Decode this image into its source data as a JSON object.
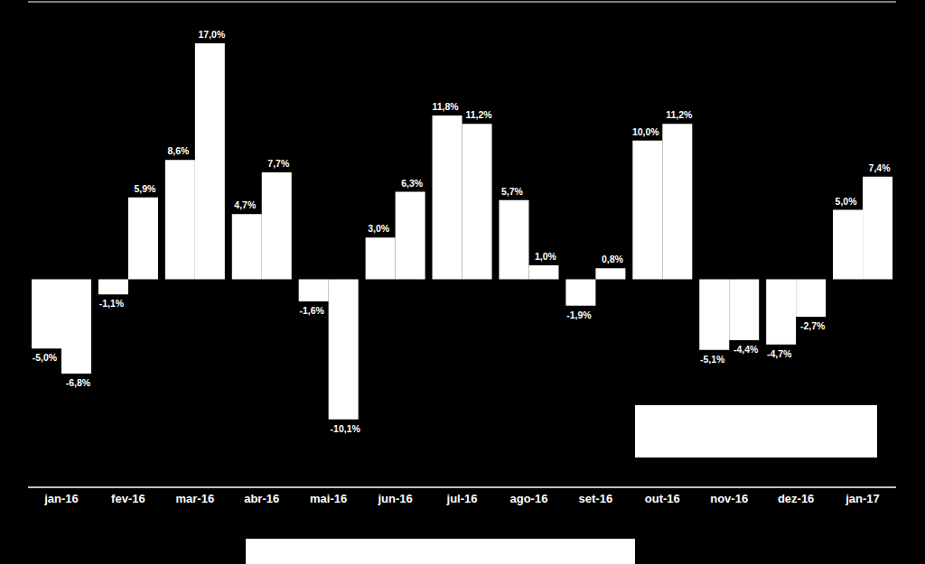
{
  "chart_data": {
    "type": "bar",
    "categories": [
      "jan-16",
      "fev-16",
      "mar-16",
      "abr-16",
      "mai-16",
      "jun-16",
      "jul-16",
      "ago-16",
      "set-16",
      "out-16",
      "nov-16",
      "dez-16",
      "jan-17"
    ],
    "series": [
      {
        "color": "#ffffff",
        "values": [
          -5.0,
          -1.1,
          8.6,
          4.7,
          -1.6,
          3.0,
          11.8,
          5.7,
          -1.9,
          10.0,
          -5.1,
          -4.7,
          5.0
        ],
        "value_labels": [
          "-5,0%",
          "-1,1%",
          "8,6%",
          "4,7%",
          "-1,6%",
          "3,0%",
          "11,8%",
          "5,7%",
          "-1,9%",
          "10,0%",
          "-5,1%",
          "-4,7%",
          "5,0%"
        ]
      },
      {
        "color": "#ffffff",
        "values": [
          -6.8,
          5.9,
          17.0,
          7.7,
          -10.1,
          6.3,
          11.2,
          1.0,
          0.8,
          11.2,
          -4.4,
          -2.7,
          7.4
        ],
        "value_labels": [
          "-6,8%",
          "5,9%",
          "17,0%",
          "7,7%",
          "-10,1%",
          "6,3%",
          "11,2%",
          "1,0%",
          "0,8%",
          "11,2%",
          "-4,4%",
          "-2,7%",
          "7,4%"
        ]
      }
    ],
    "ylim": [
      -15,
      20
    ],
    "yticks": [
      -15,
      -10,
      -5,
      0,
      5,
      10,
      15,
      20
    ],
    "grid": true,
    "data_labels": true,
    "tick_labels": "x"
  }
}
